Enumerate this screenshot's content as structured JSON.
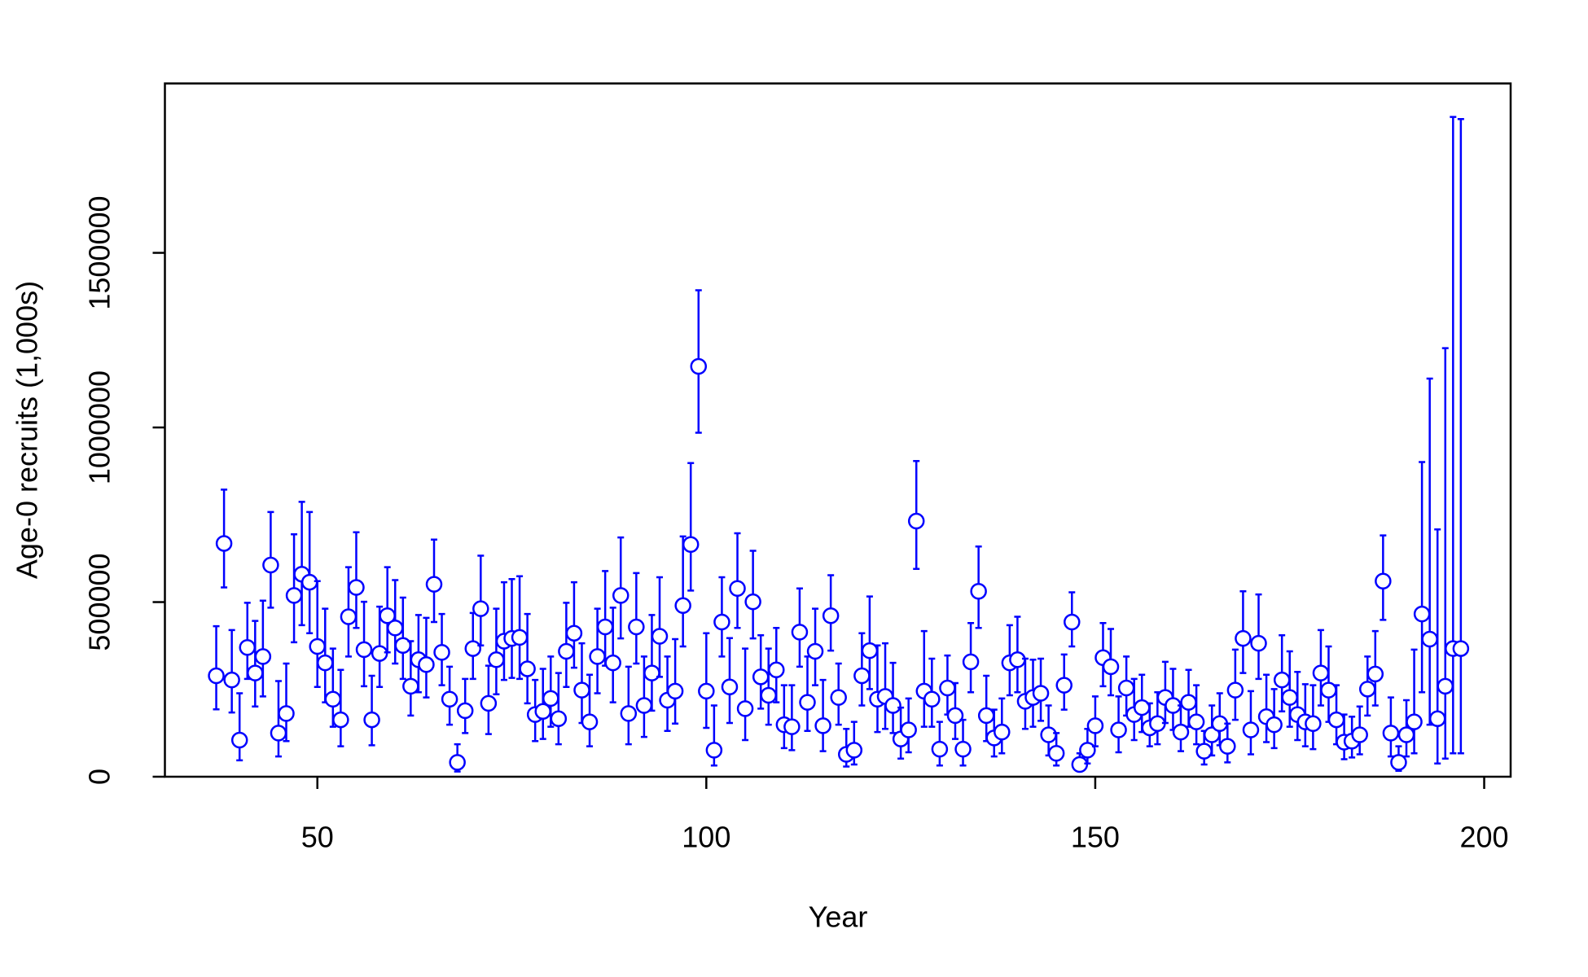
{
  "chart_data": {
    "type": "scatter",
    "x_label": "Year",
    "y_label": "Age-0 recruits (1,000s)",
    "xlim": [
      30.4,
      203.4
    ],
    "ylim": [
      0,
      1985000
    ],
    "xticks": [
      50,
      100,
      150,
      200
    ],
    "yticks": [
      0,
      500000,
      1000000,
      1500000
    ],
    "series": [
      {
        "color": "#0000ff",
        "x": [
          37,
          38,
          39,
          40,
          41,
          42,
          43,
          44,
          45,
          46,
          47,
          48,
          49,
          50,
          51,
          52,
          53,
          54,
          55,
          56,
          57,
          58,
          59,
          60,
          61,
          62,
          63,
          64,
          65,
          66,
          67,
          68,
          69,
          70,
          71,
          72,
          73,
          74,
          75,
          76,
          77,
          78,
          79,
          80,
          81,
          82,
          83,
          84,
          85,
          86,
          87,
          88,
          89,
          90,
          91,
          92,
          93,
          94,
          95,
          96,
          97,
          98,
          99,
          100,
          101,
          102,
          103,
          104,
          105,
          106,
          107,
          108,
          109,
          110,
          111,
          112,
          113,
          114,
          115,
          116,
          117,
          118,
          119,
          120,
          121,
          122,
          123,
          124,
          125,
          126,
          127,
          128,
          129,
          130,
          131,
          132,
          133,
          134,
          135,
          136,
          137,
          138,
          139,
          140,
          141,
          142,
          143,
          144,
          145,
          146,
          147,
          148,
          149,
          150,
          151,
          152,
          153,
          154,
          155,
          156,
          157,
          158,
          159,
          160,
          161,
          162,
          163,
          164,
          165,
          166,
          167,
          168,
          169,
          170,
          171,
          172,
          173,
          174,
          175,
          176,
          177,
          178,
          179,
          180,
          181,
          182,
          183,
          184,
          185,
          186,
          187,
          188,
          189,
          190,
          191,
          192,
          193,
          194,
          195,
          196,
          197
        ],
        "values": [
          289000,
          668000,
          277000,
          105000,
          370000,
          297000,
          344000,
          606000,
          125000,
          181000,
          519000,
          580000,
          557000,
          373000,
          326000,
          222000,
          163000,
          458000,
          542000,
          364000,
          163000,
          353000,
          461000,
          426000,
          376000,
          259000,
          335000,
          321000,
          551000,
          356000,
          222000,
          41000,
          189000,
          367000,
          481000,
          210000,
          335000,
          388000,
          396000,
          399000,
          309000,
          178000,
          187000,
          224000,
          166000,
          359000,
          411000,
          248000,
          157000,
          344000,
          429000,
          326000,
          519000,
          181000,
          429000,
          204000,
          297000,
          402000,
          219000,
          245000,
          490000,
          665000,
          1175000,
          245000,
          76000,
          443000,
          257000,
          539000,
          195000,
          501000,
          286000,
          233000,
          306000,
          149000,
          143000,
          414000,
          213000,
          359000,
          146000,
          461000,
          227000,
          64000,
          76000,
          289000,
          361000,
          222000,
          230000,
          204000,
          108000,
          134000,
          732000,
          245000,
          222000,
          79000,
          254000,
          175000,
          79000,
          329000,
          531000,
          175000,
          111000,
          128000,
          326000,
          335000,
          216000,
          227000,
          239000,
          120000,
          67000,
          262000,
          443000,
          35000,
          76000,
          146000,
          341000,
          315000,
          134000,
          254000,
          178000,
          198000,
          140000,
          152000,
          227000,
          204000,
          128000,
          213000,
          157000,
          73000,
          120000,
          152000,
          87000,
          248000,
          396000,
          134000,
          382000,
          172000,
          149000,
          277000,
          227000,
          178000,
          157000,
          152000,
          297000,
          248000,
          163000,
          99000,
          102000,
          120000,
          251000,
          294000,
          560000,
          125000,
          41000,
          120000,
          157000,
          466000,
          394000,
          166000,
          259000,
          367000,
          367000
        ],
        "lower": [
          193000,
          542000,
          184000,
          47000,
          280000,
          201000,
          230000,
          484000,
          58000,
          102000,
          385000,
          434000,
          411000,
          257000,
          213000,
          143000,
          87000,
          344000,
          426000,
          259000,
          90000,
          257000,
          356000,
          324000,
          280000,
          175000,
          242000,
          227000,
          443000,
          262000,
          149000,
          15000,
          125000,
          280000,
          376000,
          122000,
          236000,
          277000,
          283000,
          280000,
          210000,
          102000,
          108000,
          143000,
          93000,
          257000,
          312000,
          154000,
          87000,
          239000,
          318000,
          213000,
          396000,
          93000,
          324000,
          114000,
          189000,
          286000,
          131000,
          152000,
          373000,
          533000,
          985000,
          140000,
          32000,
          344000,
          154000,
          426000,
          105000,
          396000,
          195000,
          149000,
          213000,
          82000,
          76000,
          315000,
          131000,
          262000,
          73000,
          361000,
          149000,
          29000,
          35000,
          204000,
          251000,
          128000,
          137000,
          125000,
          52000,
          70000,
          595000,
          143000,
          143000,
          32000,
          178000,
          108000,
          32000,
          242000,
          426000,
          102000,
          58000,
          67000,
          233000,
          242000,
          137000,
          143000,
          160000,
          61000,
          32000,
          192000,
          373000,
          17000,
          38000,
          87000,
          259000,
          233000,
          70000,
          175000,
          105000,
          128000,
          87000,
          93000,
          154000,
          134000,
          73000,
          143000,
          93000,
          35000,
          61000,
          90000,
          41000,
          163000,
          297000,
          64000,
          280000,
          99000,
          82000,
          187000,
          143000,
          105000,
          87000,
          79000,
          204000,
          157000,
          93000,
          50000,
          55000,
          64000,
          175000,
          204000,
          449000,
          58000,
          17000,
          58000,
          67000,
          242000,
          149000,
          38000,
          52000,
          67000,
          67000
        ],
        "upper": [
          431000,
          822000,
          420000,
          239000,
          498000,
          446000,
          504000,
          758000,
          274000,
          324000,
          694000,
          787000,
          758000,
          560000,
          481000,
          367000,
          306000,
          600000,
          700000,
          501000,
          289000,
          487000,
          600000,
          563000,
          513000,
          388000,
          463000,
          455000,
          679000,
          466000,
          315000,
          93000,
          280000,
          469000,
          633000,
          318000,
          481000,
          557000,
          566000,
          574000,
          466000,
          277000,
          309000,
          344000,
          297000,
          498000,
          557000,
          382000,
          292000,
          481000,
          589000,
          484000,
          685000,
          315000,
          583000,
          344000,
          463000,
          571000,
          344000,
          394000,
          688000,
          898000,
          1393000,
          411000,
          204000,
          571000,
          397000,
          697000,
          367000,
          647000,
          405000,
          367000,
          426000,
          262000,
          262000,
          539000,
          344000,
          481000,
          277000,
          577000,
          324000,
          137000,
          157000,
          411000,
          516000,
          376000,
          382000,
          326000,
          198000,
          224000,
          904000,
          417000,
          338000,
          157000,
          347000,
          268000,
          163000,
          440000,
          659000,
          289000,
          192000,
          224000,
          434000,
          458000,
          338000,
          335000,
          338000,
          204000,
          125000,
          350000,
          528000,
          67000,
          137000,
          230000,
          440000,
          423000,
          230000,
          344000,
          280000,
          292000,
          210000,
          242000,
          329000,
          309000,
          204000,
          306000,
          262000,
          131000,
          204000,
          239000,
          152000,
          364000,
          531000,
          245000,
          522000,
          292000,
          251000,
          405000,
          359000,
          300000,
          265000,
          262000,
          420000,
          373000,
          262000,
          178000,
          172000,
          201000,
          344000,
          417000,
          691000,
          227000,
          87000,
          219000,
          364000,
          901000,
          1140000,
          708000,
          1227000,
          1889000,
          1883000
        ]
      }
    ]
  }
}
